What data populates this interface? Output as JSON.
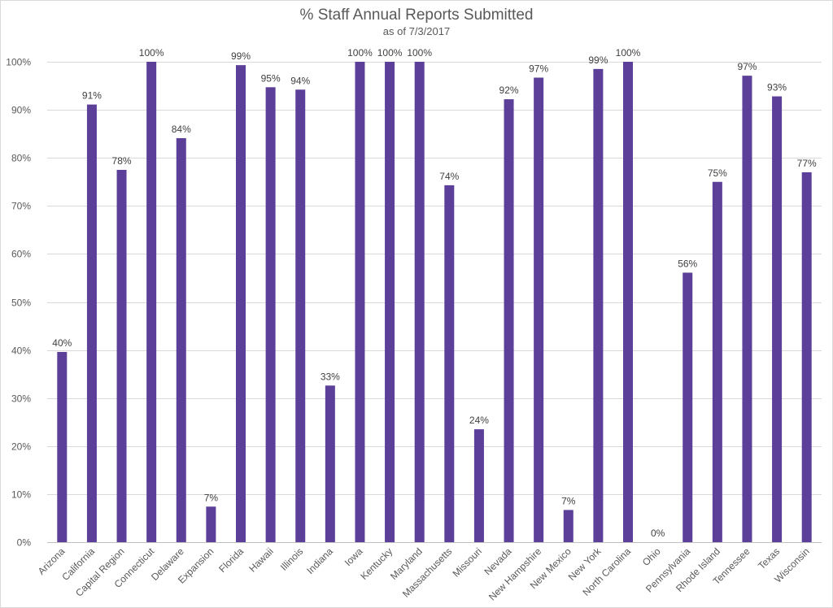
{
  "chart_data": {
    "type": "bar",
    "title": "% Staff Annual Reports Submitted",
    "subtitle": "as of 7/3/2017",
    "xlabel": "",
    "ylabel": "",
    "ylim": [
      0,
      100
    ],
    "yticks": [
      0,
      10,
      20,
      30,
      40,
      50,
      60,
      70,
      80,
      90,
      100
    ],
    "ytick_labels": [
      "0%",
      "10%",
      "20%",
      "30%",
      "40%",
      "50%",
      "60%",
      "70%",
      "80%",
      "90%",
      "100%"
    ],
    "grid": true,
    "legend": "none",
    "bar_color": "#5b3f98",
    "categories": [
      "Arizona",
      "California",
      "Capital Region",
      "Connecticut",
      "Delaware",
      "Expansion",
      "Florida",
      "Hawaii",
      "Illinois",
      "Indiana",
      "Iowa",
      "Kentucky",
      "Maryland",
      "Massachusetts",
      "Missouri",
      "Nevada",
      "New Hampshire",
      "New Mexico",
      "New York",
      "North Carolina",
      "Ohio",
      "Pennsylvania",
      "Rhode Island",
      "Tennessee",
      "Texas",
      "Wisconsin"
    ],
    "values": [
      39.6,
      91.1,
      77.5,
      100,
      84.1,
      7.4,
      99.3,
      94.7,
      94.2,
      32.6,
      100,
      100,
      100,
      74.3,
      23.5,
      92.2,
      96.7,
      6.7,
      98.5,
      100,
      0,
      56.1,
      75,
      97.1,
      92.8,
      77
    ],
    "data_labels": [
      "40%",
      "91%",
      "78%",
      "100%",
      "84%",
      "7%",
      "99%",
      "95%",
      "94%",
      "33%",
      "100%",
      "100%",
      "100%",
      "74%",
      "24%",
      "92%",
      "97%",
      "7%",
      "99%",
      "100%",
      "0%",
      "56%",
      "75%",
      "97%",
      "93%",
      "77%"
    ]
  }
}
